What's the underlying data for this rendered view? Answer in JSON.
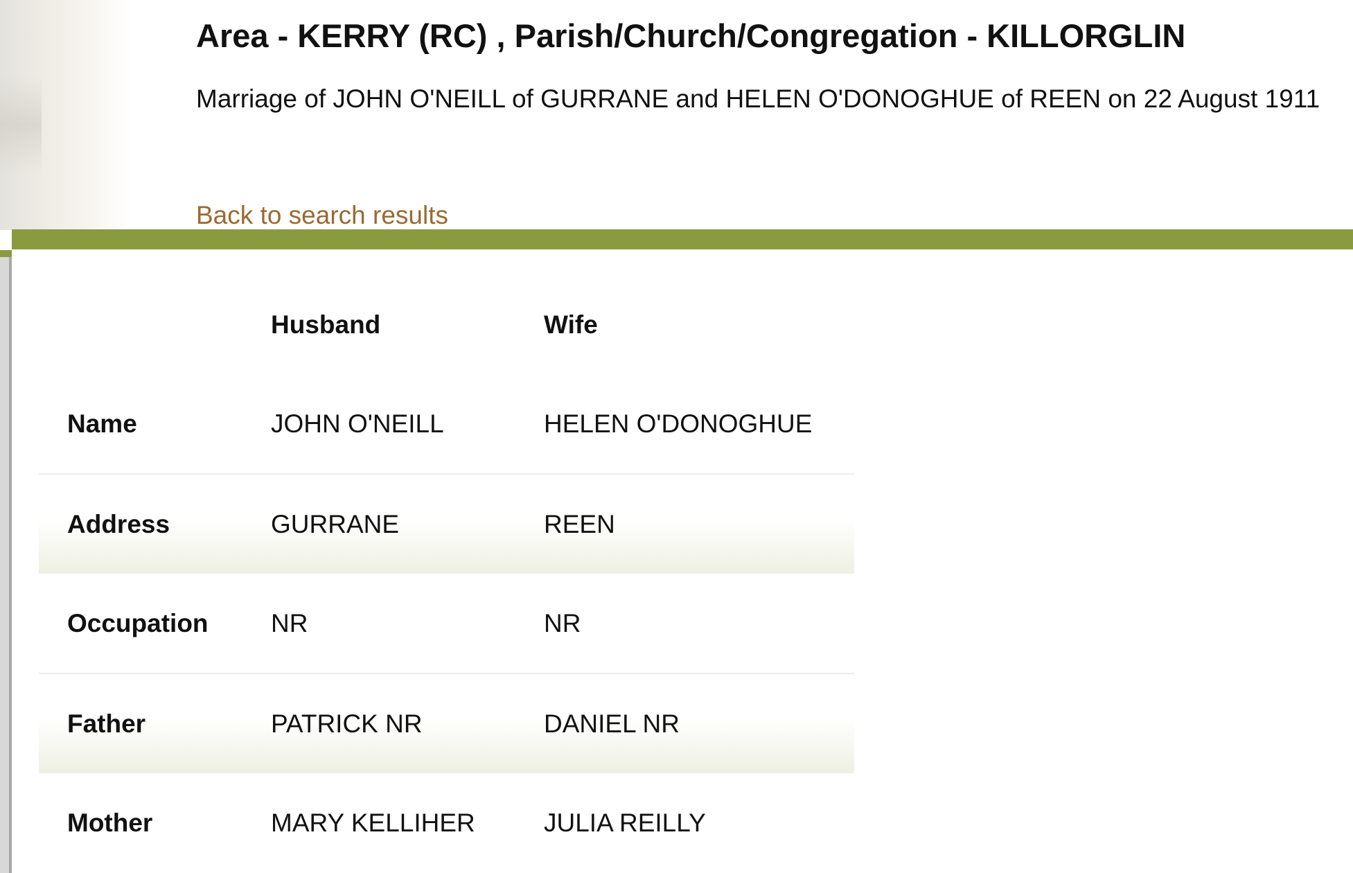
{
  "header": {
    "title": "Area - KERRY (RC) , Parish/Church/Congregation - KILLORGLIN",
    "subtitle": "Marriage of JOHN O'NEILL of GURRANE and HELEN O'DONOGHUE of REEN on 22 August 1911",
    "back_link": "Back to search results"
  },
  "colors": {
    "accent_bar": "#8a9a3e",
    "link": "#9a6a34"
  },
  "table": {
    "columns": [
      "",
      "Husband",
      "Wife"
    ],
    "rows": [
      {
        "label": "Name",
        "husband": "JOHN O'NEILL",
        "wife": "HELEN O'DONOGHUE"
      },
      {
        "label": "Address",
        "husband": "GURRANE",
        "wife": "REEN"
      },
      {
        "label": "Occupation",
        "husband": "NR",
        "wife": "NR"
      },
      {
        "label": "Father",
        "husband": "PATRICK NR",
        "wife": "DANIEL NR"
      },
      {
        "label": "Mother",
        "husband": "MARY KELLIHER",
        "wife": "JULIA REILLY"
      }
    ]
  }
}
